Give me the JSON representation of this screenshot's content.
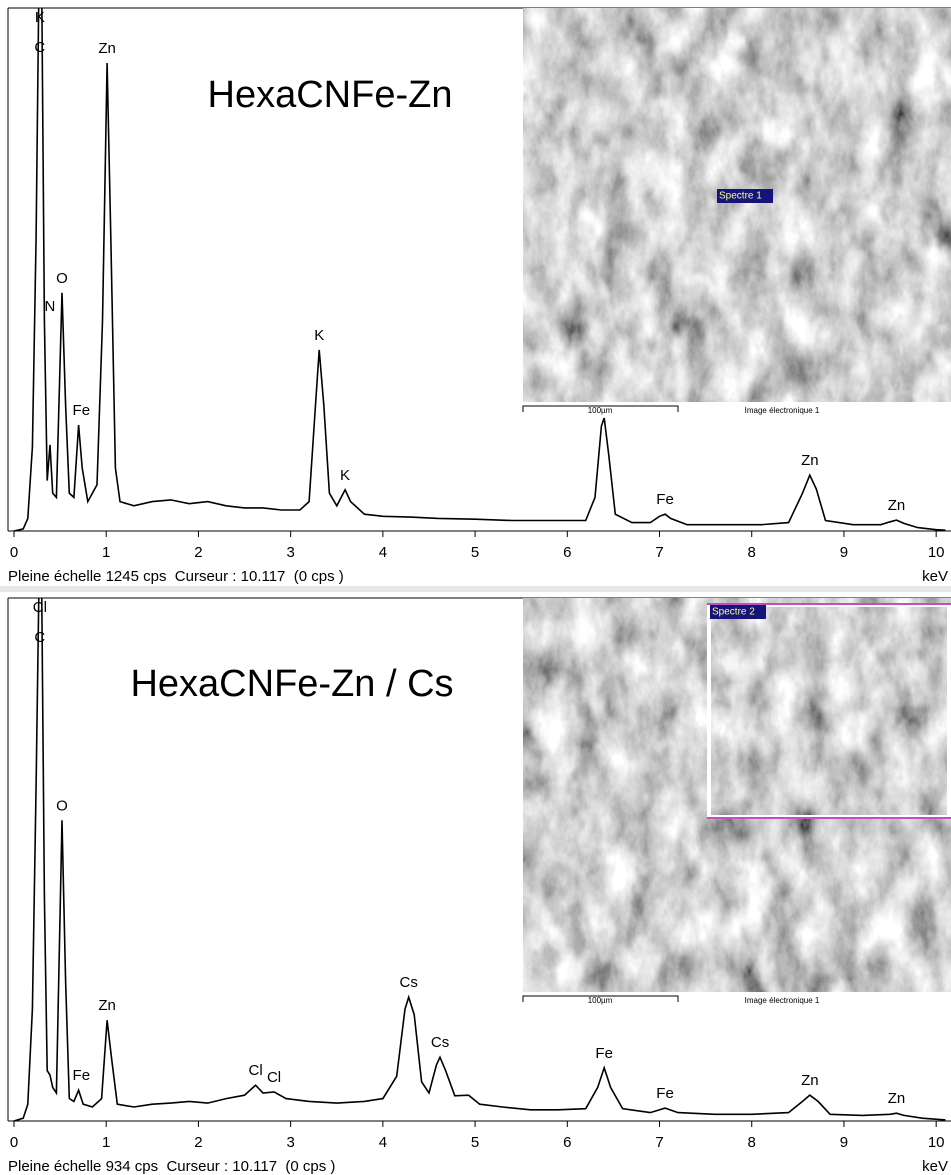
{
  "chart_data": [
    {
      "type": "line",
      "title": "HexaCNFe-Zn",
      "color": "#000000",
      "x": [
        0.0,
        0.1,
        0.15,
        0.2,
        0.24,
        0.27,
        0.3,
        0.33,
        0.36,
        0.39,
        0.42,
        0.46,
        0.52,
        0.56,
        0.6,
        0.65,
        0.7,
        0.74,
        0.8,
        0.9,
        0.96,
        1.01,
        1.05,
        1.1,
        1.15,
        1.3,
        1.5,
        1.7,
        1.9,
        2.1,
        2.3,
        2.5,
        2.7,
        2.9,
        3.1,
        3.2,
        3.27,
        3.31,
        3.36,
        3.42,
        3.5,
        3.59,
        3.65,
        3.8,
        4.0,
        4.3,
        4.6,
        5.0,
        5.4,
        5.8,
        6.2,
        6.3,
        6.37,
        6.4,
        6.45,
        6.52,
        6.7,
        6.9,
        7.0,
        7.06,
        7.12,
        7.3,
        7.7,
        8.1,
        8.4,
        8.55,
        8.63,
        8.7,
        8.8,
        9.1,
        9.4,
        9.5,
        9.57,
        9.65,
        9.8,
        10.0,
        10.1
      ],
      "values": [
        0,
        5,
        30,
        200,
        700,
        1300,
        1300,
        500,
        120,
        205,
        90,
        80,
        567,
        300,
        90,
        80,
        252,
        150,
        70,
        110,
        500,
        1114,
        700,
        150,
        70,
        60,
        70,
        74,
        65,
        70,
        60,
        55,
        55,
        50,
        50,
        70,
        300,
        431,
        300,
        90,
        60,
        98,
        70,
        40,
        35,
        33,
        30,
        28,
        25,
        25,
        25,
        80,
        250,
        269,
        180,
        40,
        20,
        20,
        35,
        40,
        30,
        15,
        15,
        15,
        20,
        90,
        133,
        100,
        25,
        15,
        15,
        22,
        26,
        18,
        8,
        3,
        2
      ],
      "xlim": [
        0,
        10.15
      ],
      "xticks": [
        0,
        1,
        2,
        3,
        4,
        5,
        6,
        7,
        8,
        9,
        10
      ],
      "ylim": [
        0,
        1245
      ],
      "x_label": "keV",
      "status": "Pleine échelle 1245 cps  Curseur : 10.117  (0 cps )",
      "annotations": [
        {
          "text": "K",
          "x": 0.28
        },
        {
          "text": "C",
          "x": 0.28
        },
        {
          "text": "Zn",
          "x": 1.01
        },
        {
          "text": "O",
          "x": 0.52
        },
        {
          "text": "N",
          "x": 0.39
        },
        {
          "text": "Fe",
          "x": 0.73
        },
        {
          "text": "K",
          "x": 3.31
        },
        {
          "text": "K",
          "x": 3.59
        },
        {
          "text": "Fe",
          "x": 7.06
        },
        {
          "text": "Zn",
          "x": 8.63
        },
        {
          "text": "Zn",
          "x": 9.57
        }
      ],
      "image": {
        "marker": "Spectre 1",
        "scale_bar": "100µm",
        "caption": "Image électronique 1"
      }
    },
    {
      "type": "line",
      "title": "HexaCNFe-Zn / Cs",
      "color": "#000000",
      "x": [
        0.0,
        0.1,
        0.15,
        0.2,
        0.24,
        0.27,
        0.3,
        0.33,
        0.36,
        0.39,
        0.42,
        0.46,
        0.52,
        0.56,
        0.6,
        0.65,
        0.7,
        0.75,
        0.85,
        0.95,
        1.01,
        1.06,
        1.12,
        1.3,
        1.5,
        1.7,
        1.9,
        2.1,
        2.3,
        2.5,
        2.62,
        2.7,
        2.82,
        2.95,
        3.2,
        3.5,
        3.8,
        4.0,
        4.15,
        4.24,
        4.28,
        4.34,
        4.42,
        4.5,
        4.58,
        4.62,
        4.68,
        4.78,
        4.93,
        5.05,
        5.3,
        5.6,
        5.9,
        6.2,
        6.33,
        6.4,
        6.47,
        6.6,
        6.9,
        7.06,
        7.2,
        7.6,
        8.0,
        8.4,
        8.55,
        8.63,
        8.72,
        8.85,
        9.2,
        9.5,
        9.57,
        9.65,
        9.85,
        10.1
      ],
      "values": [
        0,
        5,
        30,
        200,
        600,
        950,
        950,
        400,
        90,
        82,
        60,
        50,
        537,
        250,
        40,
        35,
        55,
        30,
        25,
        40,
        180,
        110,
        30,
        25,
        30,
        32,
        35,
        32,
        40,
        46,
        64,
        50,
        52,
        40,
        35,
        32,
        35,
        40,
        80,
        200,
        221,
        190,
        70,
        50,
        100,
        114,
        90,
        45,
        46,
        30,
        25,
        20,
        20,
        22,
        60,
        95,
        60,
        22,
        15,
        23,
        15,
        12,
        12,
        15,
        35,
        46,
        35,
        12,
        10,
        12,
        14,
        10,
        5,
        2
      ],
      "xlim": [
        0,
        10.15
      ],
      "xticks": [
        0,
        1,
        2,
        3,
        4,
        5,
        6,
        7,
        8,
        9,
        10
      ],
      "ylim": [
        0,
        934
      ],
      "x_label": "keV",
      "status": "Pleine échelle 934 cps  Curseur : 10.117  (0 cps )",
      "annotations": [
        {
          "text": "Cl",
          "x": 0.28
        },
        {
          "text": "C",
          "x": 0.28
        },
        {
          "text": "O",
          "x": 0.52
        },
        {
          "text": "Zn",
          "x": 1.01
        },
        {
          "text": "Fe",
          "x": 0.73
        },
        {
          "text": "Cl",
          "x": 2.62
        },
        {
          "text": "Cl",
          "x": 2.82
        },
        {
          "text": "Cs",
          "x": 4.28
        },
        {
          "text": "Cs",
          "x": 4.62
        },
        {
          "text": "Fe",
          "x": 6.4
        },
        {
          "text": "Fe",
          "x": 7.06
        },
        {
          "text": "Zn",
          "x": 8.63
        },
        {
          "text": "Zn",
          "x": 9.57
        }
      ],
      "image": {
        "marker": "Spectre 2",
        "scale_bar": "100µm",
        "caption": "Image électronique 1"
      }
    }
  ]
}
